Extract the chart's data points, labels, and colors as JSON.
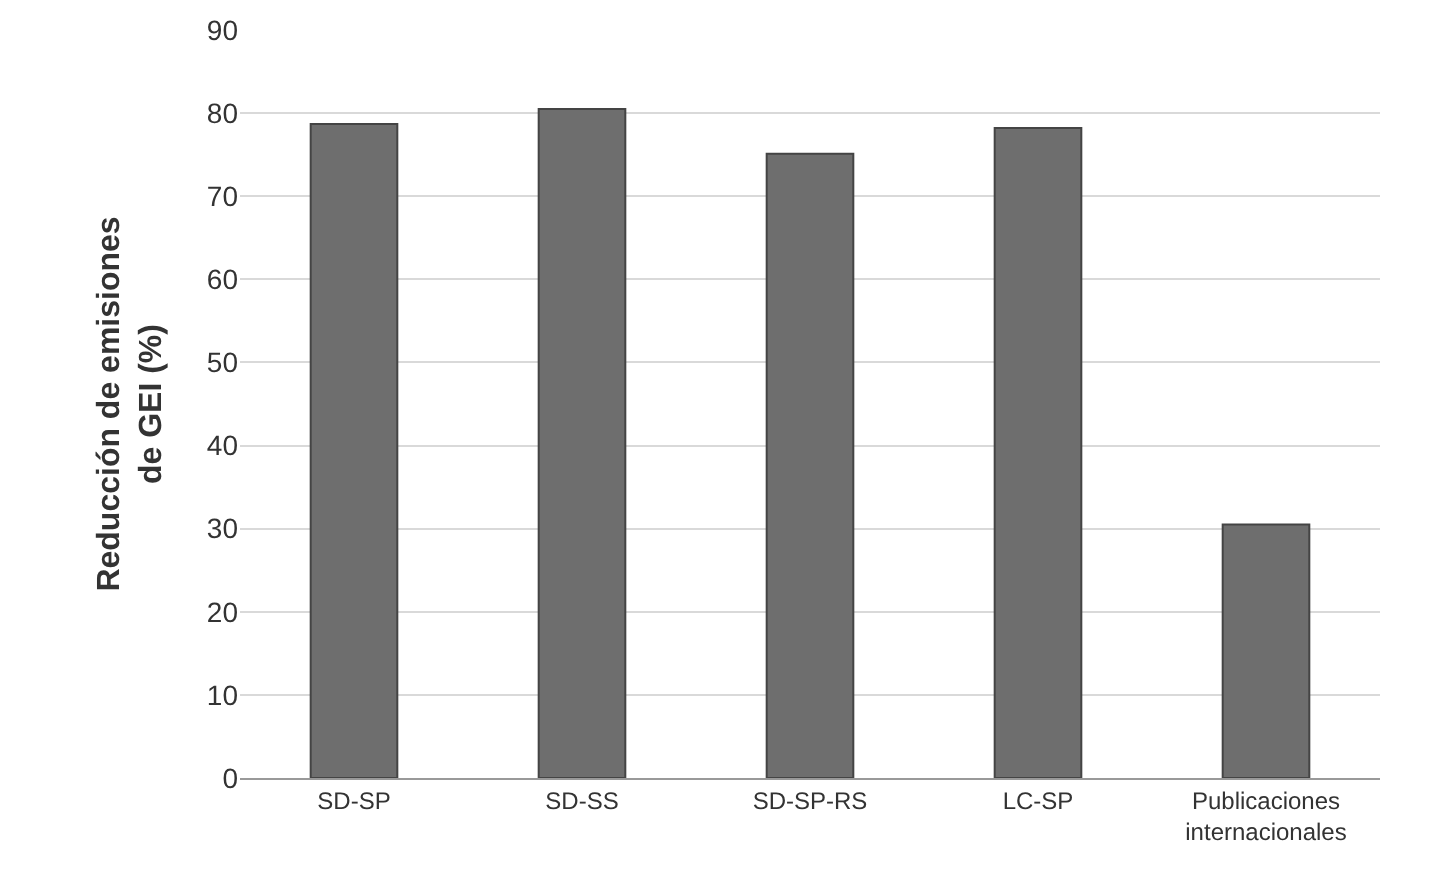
{
  "chart_data": {
    "type": "bar",
    "ylabel": "Reducción de emisiones\nde GEI (%)",
    "categories": [
      "SD-SP",
      "SD-SS",
      "SD-SP-RS",
      "LC-SP",
      "Publicaciones\ninternacionales"
    ],
    "values": [
      78.7,
      80.5,
      75.1,
      78.2,
      30.5
    ],
    "color": "#6e6e6e",
    "ylim": [
      0,
      90
    ],
    "yticks": [
      0,
      10,
      20,
      30,
      40,
      50,
      60,
      70,
      80,
      90
    ],
    "grid": "y"
  }
}
